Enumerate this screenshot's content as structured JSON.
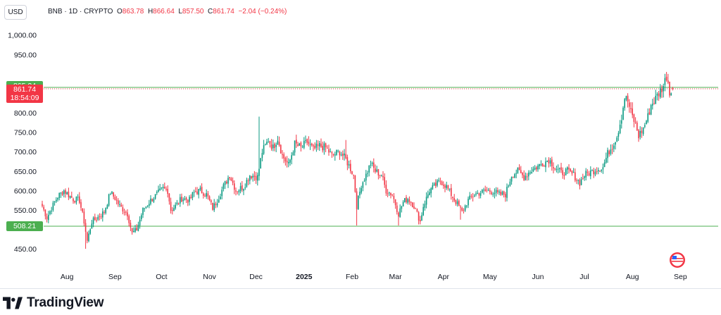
{
  "toolbar": {
    "currency_label": "USD"
  },
  "legend": {
    "symbol": "BNB · 1D · CRYPTO",
    "o_label": "O",
    "o_value": "863.78",
    "h_label": "H",
    "h_value": "866.64",
    "l_label": "L",
    "l_value": "857.50",
    "c_label": "C",
    "c_value": "861.74",
    "change": "−2.04 (−0.24%)"
  },
  "price_tags": {
    "high_line": "865.24",
    "last_price": "861.74",
    "countdown": "18:54:09",
    "low_line": "508.21"
  },
  "branding": {
    "logo_text": "TradingView"
  },
  "colors": {
    "up": "#089981",
    "down": "#f23645",
    "last_tag": "#f23645",
    "line_tag": "#4caf50"
  },
  "chart_data": {
    "type": "candlestick",
    "title": "BNB · 1D · CRYPTO",
    "ylim": [
      400,
      1050
    ],
    "y_ticks": [
      450,
      500,
      550,
      600,
      650,
      700,
      750,
      800,
      850,
      900,
      950,
      1000
    ],
    "y_tick_labels": [
      "450.00",
      "",
      "550.00",
      "600.00",
      "650.00",
      "700.00",
      "750.00",
      "800.00",
      "",
      "",
      "950.00",
      "1,000.00"
    ],
    "x_ticks": [
      {
        "label": "Aug",
        "day": 16
      },
      {
        "label": "Sep",
        "day": 47
      },
      {
        "label": "Oct",
        "day": 77
      },
      {
        "label": "Nov",
        "day": 108
      },
      {
        "label": "Dec",
        "day": 138
      },
      {
        "label": "2025",
        "day": 169
      },
      {
        "label": "Feb",
        "day": 200
      },
      {
        "label": "Mar",
        "day": 228
      },
      {
        "label": "Apr",
        "day": 259
      },
      {
        "label": "May",
        "day": 289
      },
      {
        "label": "Jun",
        "day": 320
      },
      {
        "label": "Jul",
        "day": 350
      },
      {
        "label": "Aug",
        "day": 381
      },
      {
        "label": "Sep",
        "day": 412
      }
    ],
    "horizontal_lines": [
      {
        "value": 865.24,
        "color": "#4caf50"
      },
      {
        "value": 508.21,
        "color": "#4caf50"
      },
      {
        "value": 861.74,
        "color": "#f23645",
        "dotted": true
      }
    ],
    "last": {
      "open": 863.78,
      "high": 866.64,
      "low": 857.5,
      "close": 861.74
    },
    "anchors": [
      [
        0,
        560
      ],
      [
        3,
        530
      ],
      [
        6,
        555
      ],
      [
        10,
        585
      ],
      [
        14,
        600
      ],
      [
        20,
        578
      ],
      [
        24,
        575
      ],
      [
        27,
        520
      ],
      [
        29,
        470
      ],
      [
        32,
        520
      ],
      [
        35,
        528
      ],
      [
        40,
        545
      ],
      [
        44,
        595
      ],
      [
        47,
        580
      ],
      [
        50,
        560
      ],
      [
        55,
        540
      ],
      [
        58,
        490
      ],
      [
        61,
        500
      ],
      [
        65,
        550
      ],
      [
        70,
        575
      ],
      [
        74,
        590
      ],
      [
        78,
        605
      ],
      [
        81,
        600
      ],
      [
        83,
        550
      ],
      [
        86,
        560
      ],
      [
        90,
        580
      ],
      [
        95,
        575
      ],
      [
        98,
        595
      ],
      [
        102,
        600
      ],
      [
        106,
        590
      ],
      [
        110,
        555
      ],
      [
        113,
        575
      ],
      [
        117,
        610
      ],
      [
        121,
        640
      ],
      [
        125,
        600
      ],
      [
        130,
        610
      ],
      [
        134,
        640
      ],
      [
        139,
        635
      ],
      [
        142,
        700
      ],
      [
        146,
        730
      ],
      [
        149,
        710
      ],
      [
        152,
        735
      ],
      [
        155,
        690
      ],
      [
        159,
        665
      ],
      [
        163,
        720
      ],
      [
        167,
        710
      ],
      [
        171,
        725
      ],
      [
        175,
        705
      ],
      [
        179,
        715
      ],
      [
        183,
        710
      ],
      [
        187,
        690
      ],
      [
        192,
        700
      ],
      [
        196,
        680
      ],
      [
        201,
        640
      ],
      [
        203,
        560
      ],
      [
        206,
        615
      ],
      [
        209,
        640
      ],
      [
        212,
        670
      ],
      [
        215,
        650
      ],
      [
        219,
        640
      ],
      [
        222,
        600
      ],
      [
        226,
        590
      ],
      [
        230,
        540
      ],
      [
        233,
        570
      ],
      [
        236,
        580
      ],
      [
        240,
        560
      ],
      [
        244,
        520
      ],
      [
        246,
        560
      ],
      [
        250,
        600
      ],
      [
        253,
        610
      ],
      [
        257,
        625
      ],
      [
        261,
        610
      ],
      [
        264,
        590
      ],
      [
        268,
        565
      ],
      [
        271,
        545
      ],
      [
        275,
        575
      ],
      [
        279,
        590
      ],
      [
        283,
        595
      ],
      [
        287,
        600
      ],
      [
        291,
        598
      ],
      [
        295,
        590
      ],
      [
        299,
        590
      ],
      [
        303,
        640
      ],
      [
        307,
        650
      ],
      [
        311,
        635
      ],
      [
        315,
        650
      ],
      [
        319,
        660
      ],
      [
        323,
        670
      ],
      [
        327,
        680
      ],
      [
        331,
        660
      ],
      [
        335,
        645
      ],
      [
        339,
        650
      ],
      [
        343,
        640
      ],
      [
        347,
        620
      ],
      [
        350,
        640
      ],
      [
        354,
        648
      ],
      [
        358,
        655
      ],
      [
        362,
        660
      ],
      [
        365,
        695
      ],
      [
        368,
        715
      ],
      [
        371,
        740
      ],
      [
        374,
        790
      ],
      [
        376,
        840
      ],
      [
        378,
        830
      ],
      [
        380,
        800
      ],
      [
        383,
        770
      ],
      [
        385,
        740
      ],
      [
        388,
        760
      ],
      [
        391,
        790
      ],
      [
        393,
        820
      ],
      [
        395,
        830
      ],
      [
        398,
        850
      ],
      [
        401,
        870
      ],
      [
        403,
        895
      ],
      [
        404,
        880
      ],
      [
        405,
        850
      ],
      [
        406,
        863
      ],
      [
        407,
        862
      ]
    ],
    "wick_spikes": [
      [
        28,
        450
      ],
      [
        140,
        790
      ],
      [
        203,
        510
      ],
      [
        230,
        510
      ],
      [
        196,
        730
      ],
      [
        238,
        560
      ],
      [
        270,
        525
      ],
      [
        404,
        900
      ]
    ]
  }
}
